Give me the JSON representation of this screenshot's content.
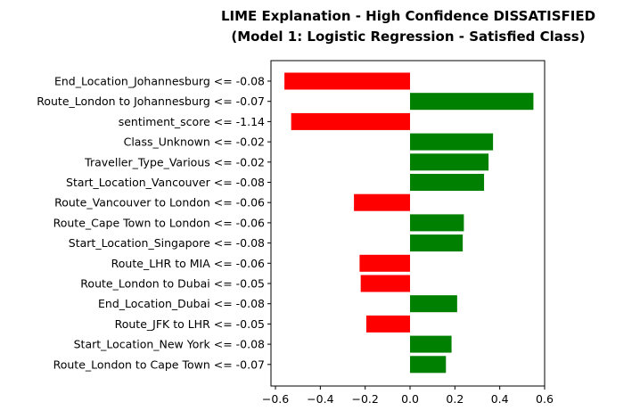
{
  "chart_data": {
    "type": "bar",
    "orientation": "horizontal",
    "title": "LIME Explanation - High Confidence DISSATISFIED",
    "subtitle": "(Model 1: Logistic Regression - Satisfied Class)",
    "xlabel": "",
    "ylabel": "",
    "xlim": [
      -0.62,
      0.6
    ],
    "x_ticks": [
      "−0.6",
      "−0.4",
      "−0.2",
      "0.0",
      "0.2",
      "0.4",
      "0.6"
    ],
    "x_tick_values": [
      -0.6,
      -0.4,
      -0.2,
      0.0,
      0.2,
      0.4,
      0.6
    ],
    "grid": false,
    "legend": "none",
    "colors": {
      "positive": "#008000",
      "negative": "#ff0000"
    },
    "categories": [
      "End_Location_Johannesburg <= -0.08",
      "Route_London to Johannesburg <= -0.07",
      "sentiment_score <= -1.14",
      "Class_Unknown <= -0.02",
      "Traveller_Type_Various <= -0.02",
      "Start_Location_Vancouver <= -0.08",
      "Route_Vancouver to London <= -0.06",
      "Route_Cape Town to London <= -0.06",
      "Start_Location_Singapore <= -0.08",
      "Route_LHR to MIA <= -0.06",
      "Route_London to Dubai <= -0.05",
      "End_Location_Dubai <= -0.08",
      "Route_JFK to LHR <= -0.05",
      "Start_Location_New York <= -0.08",
      "Route_London to Cape Town <= -0.07"
    ],
    "values": [
      -0.56,
      0.55,
      -0.53,
      0.37,
      0.35,
      0.33,
      -0.25,
      0.24,
      0.235,
      -0.225,
      -0.22,
      0.21,
      -0.195,
      0.185,
      0.16
    ]
  }
}
